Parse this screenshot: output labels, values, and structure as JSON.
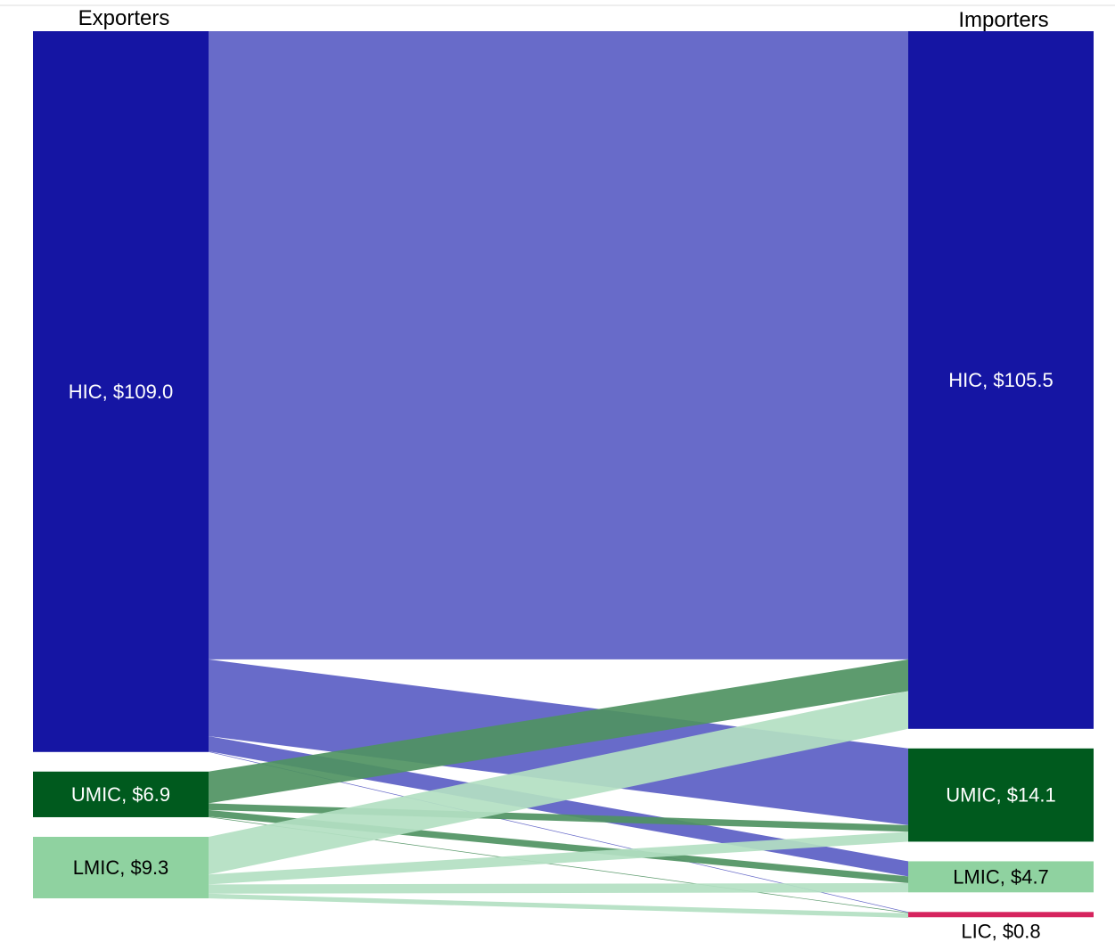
{
  "chart_data": {
    "type": "sankey",
    "units": "$",
    "columns": {
      "left": "Exporters",
      "right": "Importers"
    },
    "sources": [
      {
        "id": "HIC",
        "label": "HIC, $109.0",
        "value": 109.0,
        "color": "#1515a3",
        "label_color": "#ffffff"
      },
      {
        "id": "UMIC",
        "label": "UMIC, $6.9",
        "value": 6.9,
        "color": "#005a1e",
        "label_color": "#ffffff"
      },
      {
        "id": "LMIC",
        "label": "LMIC, $9.3",
        "value": 9.3,
        "color": "#8fd2a0",
        "label_color": "#000000"
      }
    ],
    "targets": [
      {
        "id": "HIC",
        "label": "HIC, $105.5",
        "value": 105.5,
        "color": "#1515a3",
        "label_color": "#ffffff"
      },
      {
        "id": "UMIC",
        "label": "UMIC, $14.1",
        "value": 14.1,
        "color": "#005a1e",
        "label_color": "#ffffff"
      },
      {
        "id": "LMIC",
        "label": "LMIC, $4.7",
        "value": 4.7,
        "color": "#8fd2a0",
        "label_color": "#000000"
      },
      {
        "id": "LIC",
        "label": "LIC, $0.8",
        "value": 0.8,
        "color": "#d6245e",
        "label_color": "#000000"
      }
    ],
    "flows": [
      {
        "source": "HIC",
        "target": "HIC",
        "value": 95.0,
        "color": "#5b5ec4"
      },
      {
        "source": "HIC",
        "target": "UMIC",
        "value": 11.6,
        "color": "#5b5ec4"
      },
      {
        "source": "HIC",
        "target": "LMIC",
        "value": 2.3,
        "color": "#5b5ec4"
      },
      {
        "source": "HIC",
        "target": "LIC",
        "value": 0.1,
        "color": "#5b5ec4"
      },
      {
        "source": "UMIC",
        "target": "HIC",
        "value": 4.8,
        "color": "#4f9262"
      },
      {
        "source": "UMIC",
        "target": "UMIC",
        "value": 1.0,
        "color": "#4f9262"
      },
      {
        "source": "UMIC",
        "target": "LMIC",
        "value": 1.0,
        "color": "#4f9262"
      },
      {
        "source": "UMIC",
        "target": "LIC",
        "value": 0.1,
        "color": "#4f9262"
      },
      {
        "source": "LMIC",
        "target": "HIC",
        "value": 5.7,
        "color": "#b3dfc2"
      },
      {
        "source": "LMIC",
        "target": "UMIC",
        "value": 1.5,
        "color": "#b3dfc2"
      },
      {
        "source": "LMIC",
        "target": "LMIC",
        "value": 1.4,
        "color": "#b3dfc2"
      },
      {
        "source": "LMIC",
        "target": "LIC",
        "value": 0.7,
        "color": "#b3dfc2"
      }
    ]
  }
}
